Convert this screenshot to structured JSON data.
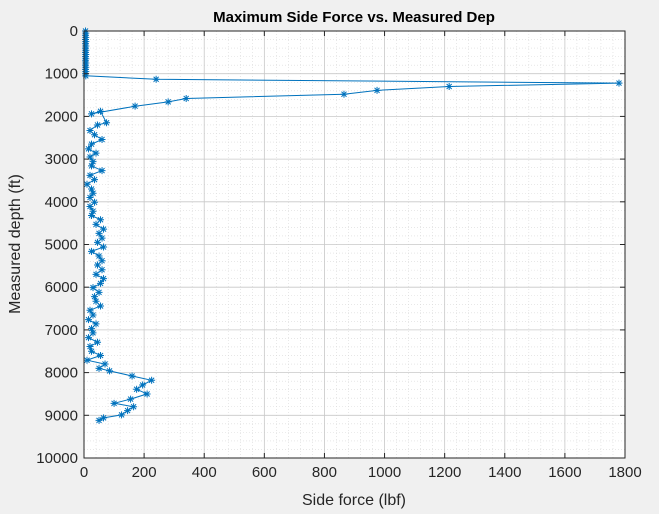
{
  "chart_data": {
    "type": "line",
    "title": "Maximum Side Force vs. Measured Dep",
    "xlabel": "Side force (lbf)",
    "ylabel": "Measured depth (ft)",
    "xlim": [
      0,
      1800
    ],
    "ylim": [
      0,
      10000
    ],
    "y_reversed": true,
    "xticks": [
      0,
      200,
      400,
      600,
      800,
      1000,
      1200,
      1400,
      1600,
      1800
    ],
    "yticks": [
      0,
      1000,
      2000,
      3000,
      4000,
      5000,
      6000,
      7000,
      8000,
      9000,
      10000
    ],
    "grid": "major-and-minor",
    "marker": "asterisk",
    "line_color": "#0072bd",
    "series": [
      {
        "points": [
          [
            5,
            0
          ],
          [
            6,
            50
          ],
          [
            5,
            100
          ],
          [
            6,
            150
          ],
          [
            5,
            200
          ],
          [
            6,
            250
          ],
          [
            5,
            300
          ],
          [
            6,
            350
          ],
          [
            5,
            400
          ],
          [
            6,
            450
          ],
          [
            5,
            500
          ],
          [
            6,
            550
          ],
          [
            5,
            600
          ],
          [
            6,
            650
          ],
          [
            5,
            700
          ],
          [
            6,
            750
          ],
          [
            5,
            800
          ],
          [
            6,
            850
          ],
          [
            5,
            900
          ],
          [
            6,
            950
          ],
          [
            5,
            1000
          ],
          [
            6,
            1050
          ],
          [
            240,
            1130
          ],
          [
            1780,
            1220
          ],
          [
            1215,
            1300
          ],
          [
            975,
            1390
          ],
          [
            865,
            1480
          ],
          [
            340,
            1580
          ],
          [
            280,
            1660
          ],
          [
            170,
            1760
          ],
          [
            25,
            1940
          ],
          [
            55,
            1880
          ],
          [
            75,
            2150
          ],
          [
            45,
            2200
          ],
          [
            20,
            2330
          ],
          [
            35,
            2430
          ],
          [
            60,
            2540
          ],
          [
            25,
            2650
          ],
          [
            15,
            2760
          ],
          [
            40,
            2860
          ],
          [
            20,
            2950
          ],
          [
            30,
            3060
          ],
          [
            25,
            3160
          ],
          [
            60,
            3270
          ],
          [
            20,
            3380
          ],
          [
            35,
            3480
          ],
          [
            10,
            3590
          ],
          [
            25,
            3700
          ],
          [
            30,
            3800
          ],
          [
            20,
            3900
          ],
          [
            35,
            4010
          ],
          [
            20,
            4110
          ],
          [
            30,
            4220
          ],
          [
            25,
            4320
          ],
          [
            55,
            4420
          ],
          [
            40,
            4530
          ],
          [
            65,
            4640
          ],
          [
            50,
            4740
          ],
          [
            60,
            4850
          ],
          [
            45,
            4950
          ],
          [
            65,
            5060
          ],
          [
            25,
            5160
          ],
          [
            50,
            5270
          ],
          [
            60,
            5380
          ],
          [
            45,
            5480
          ],
          [
            60,
            5590
          ],
          [
            40,
            5700
          ],
          [
            65,
            5800
          ],
          [
            55,
            5910
          ],
          [
            30,
            6010
          ],
          [
            50,
            6120
          ],
          [
            35,
            6220
          ],
          [
            40,
            6330
          ],
          [
            55,
            6440
          ],
          [
            20,
            6540
          ],
          [
            30,
            6650
          ],
          [
            15,
            6760
          ],
          [
            40,
            6860
          ],
          [
            25,
            6970
          ],
          [
            30,
            7070
          ],
          [
            15,
            7180
          ],
          [
            45,
            7290
          ],
          [
            20,
            7390
          ],
          [
            25,
            7500
          ],
          [
            55,
            7600
          ],
          [
            10,
            7710
          ],
          [
            70,
            7800
          ],
          [
            50,
            7900
          ],
          [
            85,
            7960
          ],
          [
            160,
            8080
          ],
          [
            225,
            8180
          ],
          [
            195,
            8290
          ],
          [
            175,
            8390
          ],
          [
            210,
            8500
          ],
          [
            155,
            8620
          ],
          [
            100,
            8720
          ],
          [
            165,
            8800
          ],
          [
            145,
            8890
          ],
          [
            125,
            8990
          ],
          [
            65,
            9060
          ],
          [
            50,
            9120
          ]
        ]
      }
    ]
  }
}
